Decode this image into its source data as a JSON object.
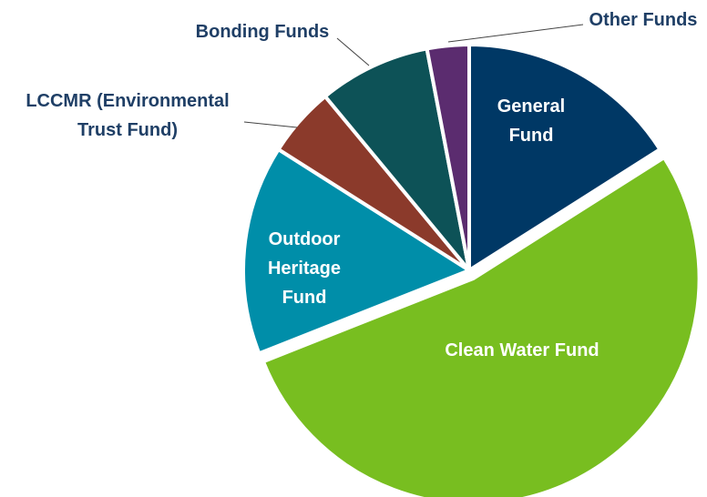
{
  "chart_data": {
    "type": "pie",
    "categories": [
      "General Fund",
      "Clean Water Fund",
      "Outdoor Heritage Fund",
      "LCCMR (Environmental Trust Fund)",
      "Bonding Funds",
      "Other Funds"
    ],
    "values": [
      16,
      53,
      15,
      5,
      8,
      3
    ],
    "colors": [
      "#003865",
      "#78be20",
      "#008ea9",
      "#8b3a2b",
      "#0d5257",
      "#5b2c6f"
    ],
    "exploded": [
      "Clean Water Fund"
    ]
  }
}
